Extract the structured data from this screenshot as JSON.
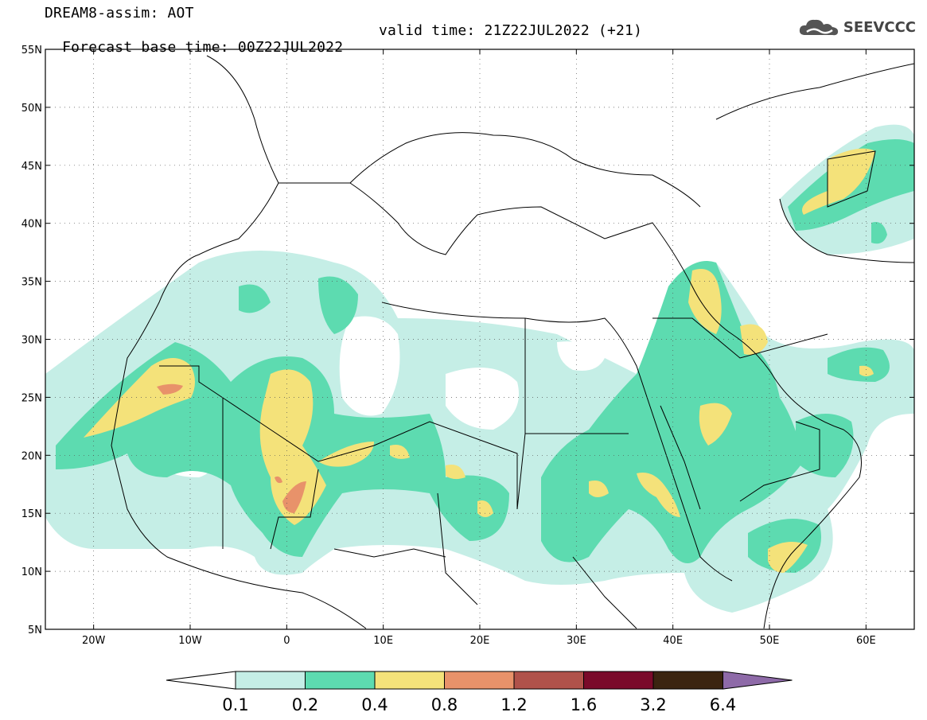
{
  "header": {
    "title": "DREAM8-assim: AOT",
    "base_time": "Forecast base time: 00Z22JUL2022",
    "valid_time": "valid time: 21Z22JUL2022 (+21)",
    "logo_text": "SEEVCCC"
  },
  "map": {
    "lon_range": [
      -25,
      65
    ],
    "lat_range": [
      5,
      55
    ],
    "lat_ticks": [
      "5N",
      "10N",
      "15N",
      "20N",
      "25N",
      "30N",
      "35N",
      "40N",
      "45N",
      "50N",
      "55N"
    ],
    "lon_ticks": [
      "20W",
      "10W",
      "0",
      "10E",
      "20E",
      "30E",
      "40E",
      "50E",
      "60E"
    ],
    "grid": "dotted"
  },
  "colorbar": {
    "labels": [
      "0.1",
      "0.2",
      "0.4",
      "0.8",
      "1.2",
      "1.6",
      "3.2",
      "6.4"
    ],
    "colors": [
      "#c5eee6",
      "#5ddbb0",
      "#f4e27a",
      "#e8926a",
      "#b0524a",
      "#7a0a2a",
      "#3b2410",
      "#8e6aa8"
    ],
    "below_color": "#ffffff"
  }
}
